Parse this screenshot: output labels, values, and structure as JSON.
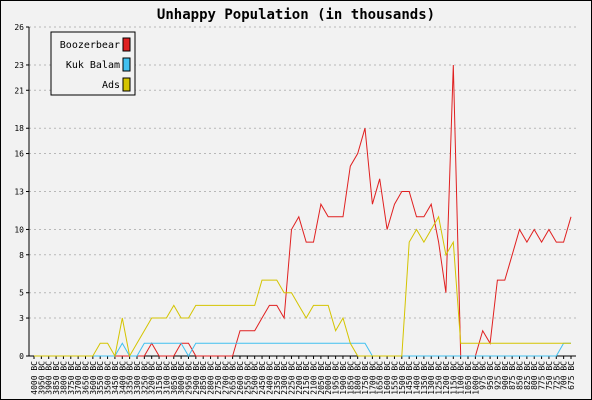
{
  "chart_data": {
    "type": "line",
    "title": "Unhappy Population (in thousands)",
    "xlabel": "",
    "ylabel": "",
    "ylim": [
      0,
      26
    ],
    "y_ticks": [
      0,
      3,
      5,
      8,
      10,
      13,
      16,
      18,
      21,
      23,
      26
    ],
    "grid": true,
    "legend_position": "top-left",
    "categories": [
      "4000 BC",
      "3950 BC",
      "3900 BC",
      "3850 BC",
      "3800 BC",
      "3750 BC",
      "3700 BC",
      "3650 BC",
      "3600 BC",
      "3550 BC",
      "3500 BC",
      "3450 BC",
      "3400 BC",
      "3350 BC",
      "3300 BC",
      "3250 BC",
      "3200 BC",
      "3150 BC",
      "3100 BC",
      "3050 BC",
      "3000 BC",
      "2950 BC",
      "2900 BC",
      "2850 BC",
      "2800 BC",
      "2750 BC",
      "2700 BC",
      "2650 BC",
      "2600 BC",
      "2550 BC",
      "2500 BC",
      "2450 BC",
      "2400 BC",
      "2350 BC",
      "2300 BC",
      "2250 BC",
      "2200 BC",
      "2150 BC",
      "2100 BC",
      "2050 BC",
      "2000 BC",
      "1950 BC",
      "1900 BC",
      "1850 BC",
      "1800 BC",
      "1750 BC",
      "1700 BC",
      "1650 BC",
      "1600 BC",
      "1550 BC",
      "1500 BC",
      "1450 BC",
      "1400 BC",
      "1350 BC",
      "1300 BC",
      "1250 BC",
      "1200 BC",
      "1150 BC",
      "1100 BC",
      "1050 BC",
      "1000 BC",
      "975 BC",
      "950 BC",
      "925 BC",
      "900 BC",
      "875 BC",
      "850 BC",
      "825 BC",
      "800 BC",
      "775 BC",
      "750 BC",
      "725 BC",
      "700 BC",
      "675 BC"
    ],
    "series": [
      {
        "name": "Boozerbear",
        "color": "#e02020",
        "values": [
          0,
          0,
          0,
          0,
          0,
          0,
          0,
          0,
          0,
          0,
          0,
          0,
          0,
          0,
          0,
          0,
          1,
          0,
          0,
          0,
          1,
          1,
          0,
          0,
          0,
          0,
          0,
          0,
          2,
          2,
          2,
          3,
          4,
          4,
          3,
          10,
          11,
          9,
          9,
          12,
          11,
          11,
          11,
          15,
          16,
          18,
          12,
          14,
          10,
          12,
          13,
          13,
          11,
          11,
          12,
          9,
          5,
          23,
          0,
          0,
          0,
          2,
          1,
          6,
          6,
          8,
          10,
          9,
          10,
          9,
          10,
          9,
          9,
          11
        ]
      },
      {
        "name": "Kuk Balam",
        "color": "#40c0f0",
        "values": [
          0,
          0,
          0,
          0,
          0,
          0,
          0,
          0,
          0,
          0,
          0,
          0,
          1,
          0,
          0,
          1,
          1,
          1,
          1,
          1,
          1,
          0,
          1,
          1,
          1,
          1,
          1,
          1,
          1,
          1,
          1,
          1,
          1,
          1,
          1,
          1,
          1,
          1,
          1,
          1,
          1,
          1,
          1,
          1,
          1,
          1,
          0,
          0,
          0,
          0,
          0,
          0,
          0,
          0,
          0,
          0,
          0,
          0,
          0,
          0,
          0,
          0,
          0,
          0,
          0,
          0,
          0,
          0,
          0,
          0,
          0,
          0,
          1,
          1
        ]
      },
      {
        "name": "Ads",
        "color": "#d4c400",
        "values": [
          0,
          0,
          0,
          0,
          0,
          0,
          0,
          0,
          0,
          1,
          1,
          0,
          3,
          0,
          1,
          2,
          3,
          3,
          3,
          4,
          3,
          3,
          4,
          4,
          4,
          4,
          4,
          4,
          4,
          4,
          4,
          6,
          6,
          6,
          5,
          5,
          4,
          3,
          4,
          4,
          4,
          2,
          3,
          1,
          0,
          0,
          0,
          0,
          0,
          0,
          0,
          9,
          10,
          9,
          10,
          11,
          8,
          9,
          1,
          1,
          1,
          1,
          1,
          1,
          1,
          1,
          1,
          1,
          1,
          1,
          1,
          1,
          1,
          1
        ]
      }
    ]
  }
}
